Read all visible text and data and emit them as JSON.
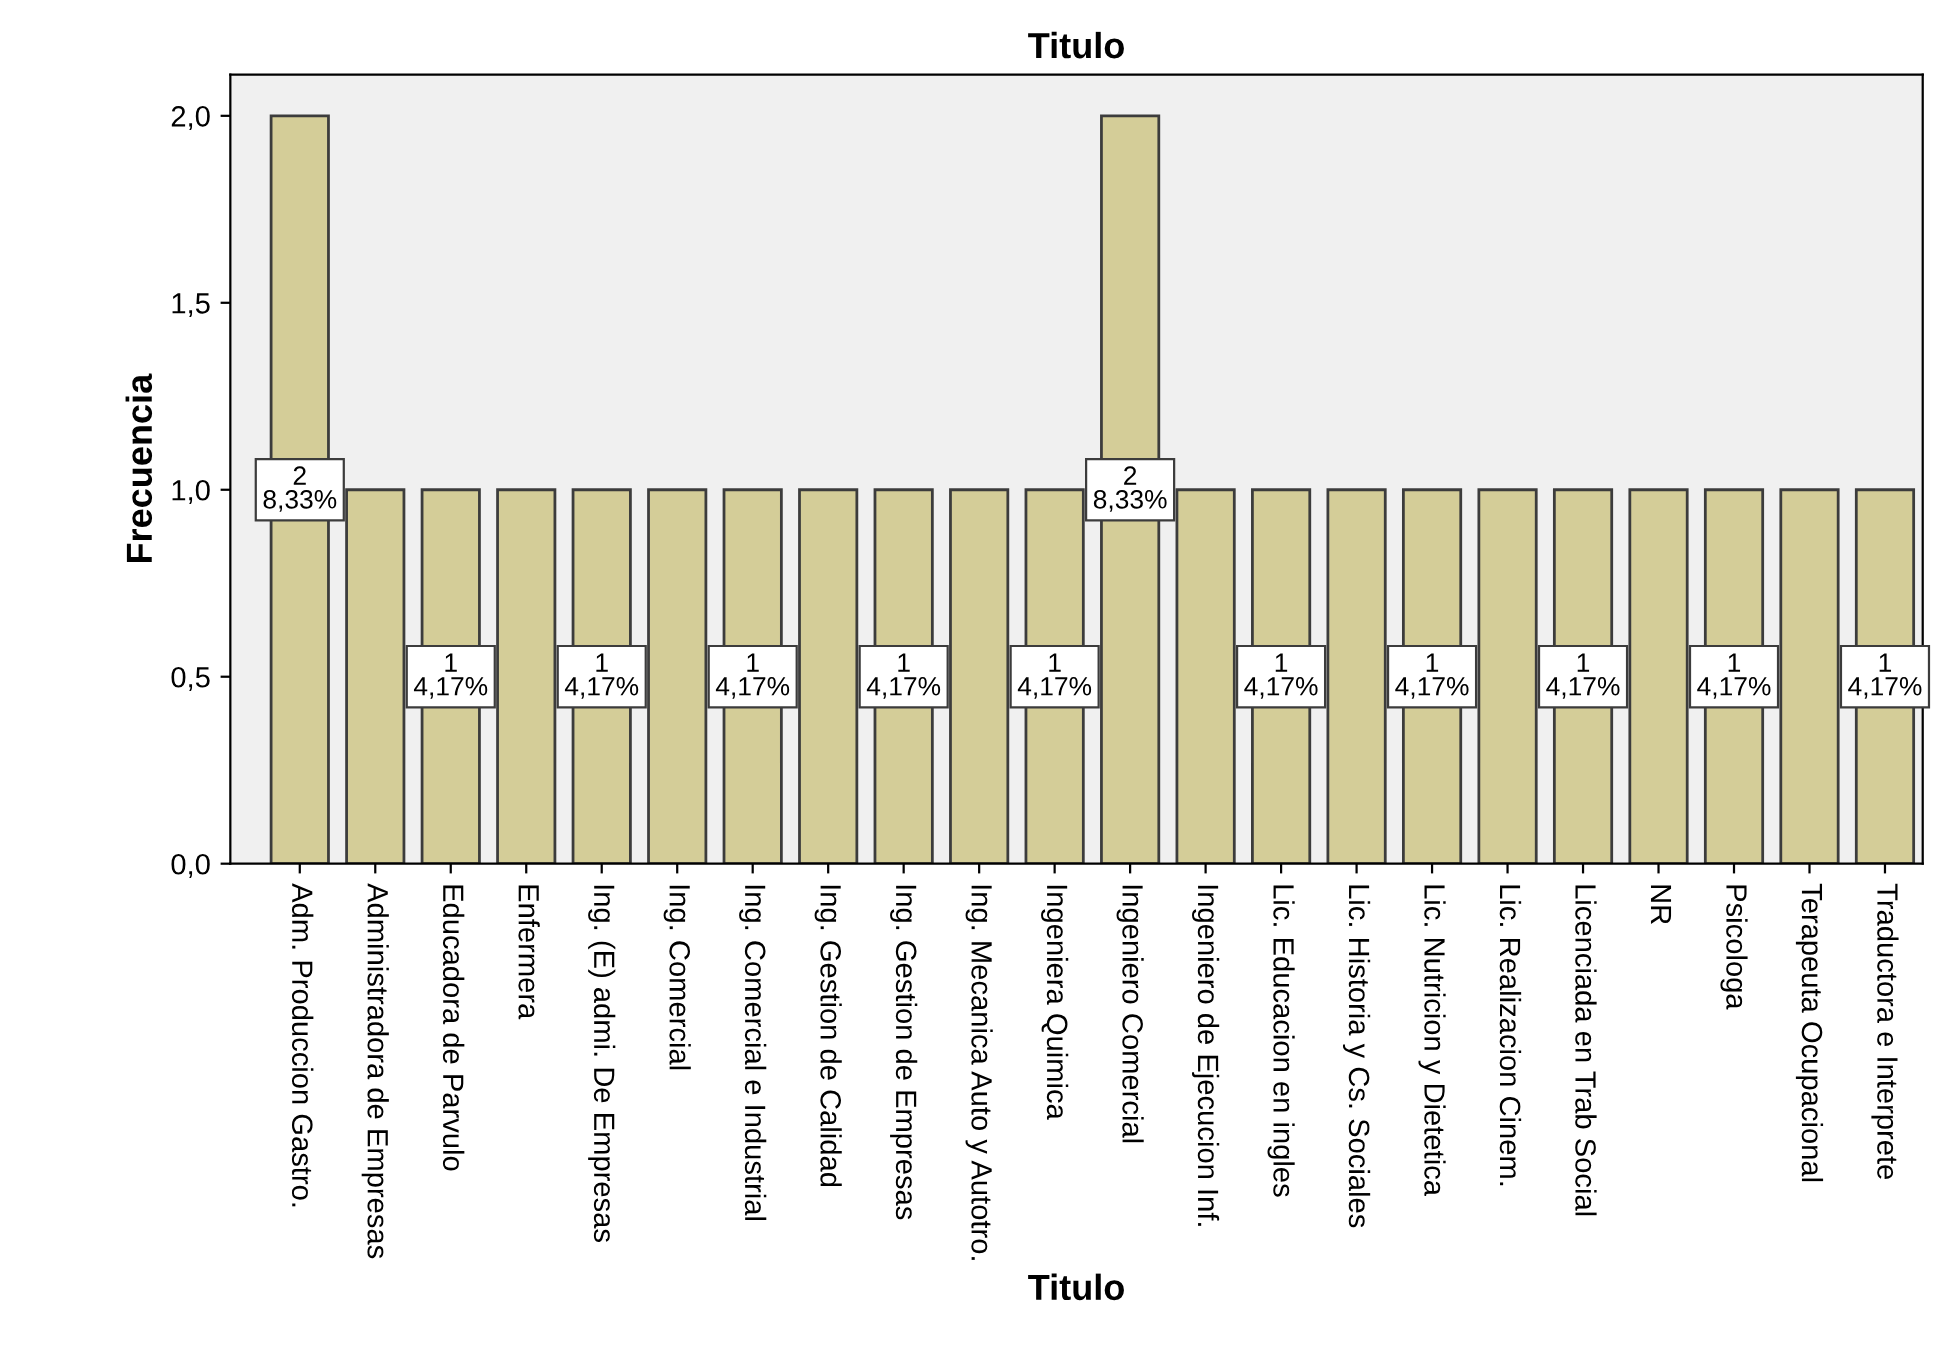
{
  "chart_data": {
    "type": "bar",
    "title": "Titulo",
    "xlabel": "Titulo",
    "ylabel": "Frecuencia",
    "categories": [
      "Adm. Produccion Gastro.",
      "Administradora de Empresas",
      "Educadora de Parvulo",
      "Enfermera",
      "Ing. (E) admi. De Empresas",
      "Ing. Comercial",
      "Ing. Comercial e Industrial",
      "Ing. Gestion de Calidad",
      "Ing. Gestion de Empresas",
      "Ing. Mecanica Auto y Autotro.",
      "Ingeniera Quimica",
      "Ingeniero Comercial",
      "Ingeniero de Ejecucion Inf.",
      "Lic. Educacion en ingles",
      "Lic. Historia y Cs. Sociales",
      "Lic. Nutricion y Dietetica",
      "Lic. Realizacion Cinem.",
      "Licenciada en Trab Social",
      "NR",
      "Psicologa",
      "Terapeuta Ocupacional",
      "Traductora e Interprete"
    ],
    "values": [
      2,
      1,
      1,
      1,
      1,
      1,
      1,
      1,
      1,
      1,
      1,
      2,
      1,
      1,
      1,
      1,
      1,
      1,
      1,
      1,
      1,
      1
    ],
    "value_labels": [
      "2\n8,33%",
      null,
      "1\n4,17%",
      null,
      "1\n4,17%",
      null,
      "1\n4,17%",
      null,
      "1\n4,17%",
      null,
      "1\n4,17%",
      "2\n8,33%",
      null,
      "1\n4,17%",
      null,
      "1\n4,17%",
      null,
      "1\n4,17%",
      null,
      "1\n4,17%",
      null,
      "1\n4,17%"
    ],
    "color": "#d4cd98",
    "ylim": [
      0,
      2.11
    ],
    "yticks": [
      {
        "value": 0,
        "label": "0,0"
      },
      {
        "value": 0.5,
        "label": "0,5"
      },
      {
        "value": 1,
        "label": "1,0"
      },
      {
        "value": 1.5,
        "label": "1,5"
      },
      {
        "value": 2,
        "label": "2,0"
      }
    ],
    "grid": false,
    "legend": false
  }
}
